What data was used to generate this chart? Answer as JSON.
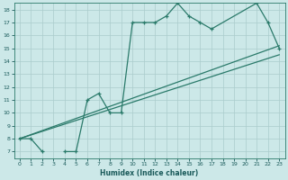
{
  "xlabel": "Humidex (Indice chaleur)",
  "bg_color": "#cce8e8",
  "grid_color": "#aacccc",
  "line_color": "#2a7a6a",
  "xlim": [
    -0.5,
    23.5
  ],
  "ylim": [
    6.5,
    18.5
  ],
  "xticks": [
    0,
    1,
    2,
    3,
    4,
    5,
    6,
    7,
    8,
    9,
    10,
    11,
    12,
    13,
    14,
    15,
    16,
    17,
    18,
    19,
    20,
    21,
    22,
    23
  ],
  "yticks": [
    7,
    8,
    9,
    10,
    11,
    12,
    13,
    14,
    15,
    16,
    17,
    18
  ],
  "jagged_x": [
    0,
    1,
    2,
    3,
    4,
    5,
    6,
    7,
    8,
    9,
    10,
    11,
    12,
    13,
    14,
    15,
    16,
    17,
    21,
    22,
    23
  ],
  "jagged_y": [
    8.0,
    8.0,
    7.0,
    null,
    7.0,
    7.0,
    11.0,
    11.5,
    10.0,
    10.0,
    17.0,
    17.0,
    17.0,
    17.5,
    18.5,
    17.5,
    17.0,
    16.5,
    18.5,
    17.0,
    15.0
  ],
  "trend1_x": [
    0,
    23
  ],
  "trend1_y": [
    8.0,
    14.5
  ],
  "trend2_x": [
    0,
    23
  ],
  "trend2_y": [
    8.0,
    15.2
  ]
}
